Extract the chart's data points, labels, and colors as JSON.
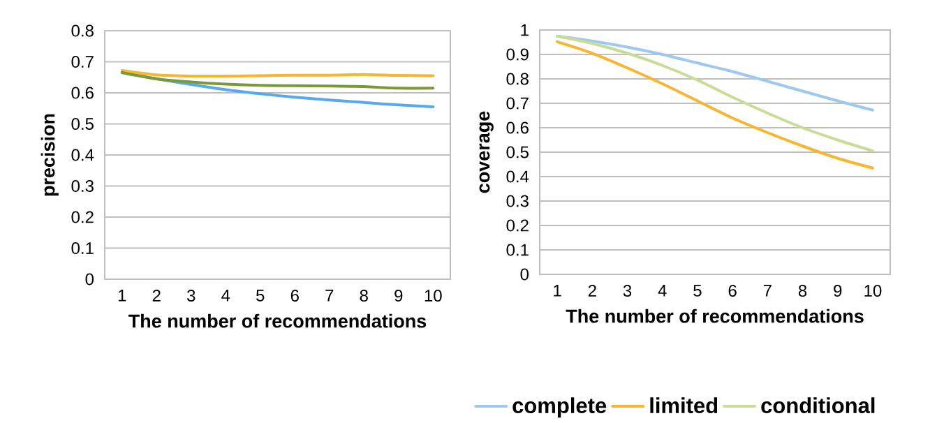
{
  "chart_data": [
    {
      "type": "line",
      "categories": [
        "1",
        "2",
        "3",
        "4",
        "5",
        "6",
        "7",
        "8",
        "9",
        "10"
      ],
      "xlabel": "The number of recommendations",
      "ylabel": "precision",
      "ylim": [
        0,
        0.8
      ],
      "yticks": [
        0,
        0.1,
        0.2,
        0.3,
        0.4,
        0.5,
        0.6,
        0.7,
        0.8
      ],
      "grid": "y",
      "series": [
        {
          "color": "#58a8f0",
          "values": [
            0.665,
            0.645,
            0.627,
            0.61,
            0.597,
            0.586,
            0.577,
            0.569,
            0.561,
            0.555
          ]
        },
        {
          "color": "#f8b52e",
          "values": [
            0.672,
            0.658,
            0.654,
            0.654,
            0.655,
            0.657,
            0.657,
            0.659,
            0.656,
            0.655
          ]
        },
        {
          "color": "#7a9a35",
          "values": [
            0.665,
            0.645,
            0.635,
            0.628,
            0.624,
            0.623,
            0.622,
            0.62,
            0.615,
            0.615
          ]
        }
      ]
    },
    {
      "type": "line",
      "categories": [
        "1",
        "2",
        "3",
        "4",
        "5",
        "6",
        "7",
        "8",
        "9",
        "10"
      ],
      "xlabel": "The number of recommendations",
      "ylabel": "coverage",
      "ylim": [
        0,
        1
      ],
      "yticks": [
        0,
        0.1,
        0.2,
        0.3,
        0.4,
        0.5,
        0.6,
        0.7,
        0.8,
        0.9,
        1
      ],
      "grid": "y",
      "legend": "bottom",
      "series": [
        {
          "name": "complete",
          "color": "#9dc8f2",
          "values": [
            0.975,
            0.955,
            0.93,
            0.9,
            0.865,
            0.83,
            0.79,
            0.75,
            0.71,
            0.672
          ]
        },
        {
          "name": "limited",
          "color": "#f8b52e",
          "values": [
            0.952,
            0.905,
            0.845,
            0.78,
            0.71,
            0.64,
            0.58,
            0.525,
            0.475,
            0.435
          ]
        },
        {
          "name": "conditional",
          "color": "#c8dc96",
          "values": [
            0.975,
            0.945,
            0.905,
            0.855,
            0.795,
            0.725,
            0.66,
            0.6,
            0.55,
            0.505
          ]
        }
      ]
    }
  ]
}
